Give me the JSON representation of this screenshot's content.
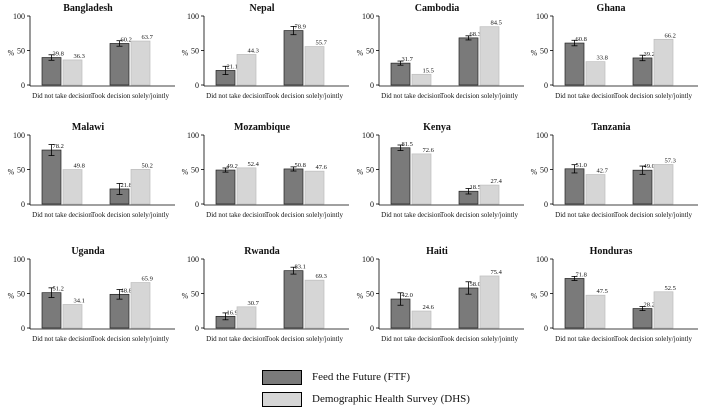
{
  "chart_data": {
    "type": "bar",
    "ylabel": "%",
    "ylim": [
      0,
      100
    ],
    "yticks": [
      0,
      50,
      100
    ],
    "categories": [
      "Did not take decision",
      "Took decision solely/jointly"
    ],
    "series_names": [
      "Feed the Future (FTF)",
      "Demographic Health Survey (DHS)"
    ],
    "colors": {
      "ftf": "#7a7a7a",
      "dhs": "#d6d6d6",
      "edge": "#222222"
    },
    "panels": [
      {
        "country": "Bangladesh",
        "ftf": [
          39.8,
          60.2
        ],
        "dhs": [
          36.3,
          63.7
        ],
        "ftf_ci": [
          [
            35.8,
            43.8
          ],
          [
            56.2,
            64.2
          ]
        ],
        "ftf_labels": [
          "39.8",
          "60.2"
        ],
        "dhs_labels": [
          "36.3",
          "63.7"
        ]
      },
      {
        "country": "Nepal",
        "ftf": [
          21.1,
          78.9
        ],
        "dhs": [
          44.3,
          55.7
        ],
        "ftf_ci": [
          [
            15.1,
            27.1
          ],
          [
            72.9,
            84.9
          ]
        ],
        "ftf_labels": [
          "21.1",
          "78.9"
        ],
        "dhs_labels": [
          "44.3",
          "55.7"
        ]
      },
      {
        "country": "Cambodia",
        "ftf": [
          31.7,
          68.3
        ],
        "dhs": [
          15.5,
          84.5
        ],
        "ftf_ci": [
          [
            28.7,
            34.7
          ],
          [
            65.3,
            71.3
          ]
        ],
        "ftf_labels": [
          "31.7",
          "68.3"
        ],
        "dhs_labels": [
          "15.5",
          "84.5"
        ]
      },
      {
        "country": "Ghana",
        "ftf": [
          60.8,
          39.2
        ],
        "dhs": [
          33.8,
          66.2
        ],
        "ftf_ci": [
          [
            56.8,
            64.8
          ],
          [
            35.2,
            43.2
          ]
        ],
        "ftf_labels": [
          "60.8",
          "39.2"
        ],
        "dhs_labels": [
          "33.8",
          "66.2"
        ]
      },
      {
        "country": "Malawi",
        "ftf": [
          78.2,
          21.8
        ],
        "dhs": [
          49.8,
          50.2
        ],
        "ftf_ci": [
          [
            70.2,
            86.2
          ],
          [
            13.8,
            29.8
          ]
        ],
        "ftf_labels": [
          "78.2",
          "21.8"
        ],
        "dhs_labels": [
          "49.8",
          "50.2"
        ]
      },
      {
        "country": "Mozambique",
        "ftf": [
          49.2,
          50.8
        ],
        "dhs": [
          52.4,
          47.6
        ],
        "ftf_ci": [
          [
            46.2,
            52.2
          ],
          [
            47.8,
            53.8
          ]
        ],
        "ftf_labels": [
          "49.2",
          "50.8"
        ],
        "dhs_labels": [
          "52.4",
          "47.6"
        ]
      },
      {
        "country": "Kenya",
        "ftf": [
          81.5,
          18.5
        ],
        "dhs": [
          72.6,
          27.4
        ],
        "ftf_ci": [
          [
            77.5,
            85.5
          ],
          [
            14.5,
            22.5
          ]
        ],
        "ftf_labels": [
          "81.5",
          "18.5"
        ],
        "dhs_labels": [
          "72.6",
          "27.4"
        ]
      },
      {
        "country": "Tanzania",
        "ftf": [
          51.0,
          49.0
        ],
        "dhs": [
          42.7,
          57.3
        ],
        "ftf_ci": [
          [
            45.0,
            57.0
          ],
          [
            43.0,
            55.0
          ]
        ],
        "ftf_labels": [
          "51.0",
          "49.0"
        ],
        "dhs_labels": [
          "42.7",
          "57.3"
        ]
      },
      {
        "country": "Uganda",
        "ftf": [
          51.2,
          48.8
        ],
        "dhs": [
          34.1,
          65.9
        ],
        "ftf_ci": [
          [
            44.2,
            58.2
          ],
          [
            41.8,
            55.8
          ]
        ],
        "ftf_labels": [
          "51.2",
          "48.8"
        ],
        "dhs_labels": [
          "34.1",
          "65.9"
        ]
      },
      {
        "country": "Rwanda",
        "ftf": [
          16.9,
          83.1
        ],
        "dhs": [
          30.7,
          69.3
        ],
        "ftf_ci": [
          [
            11.9,
            21.9
          ],
          [
            78.1,
            88.1
          ]
        ],
        "ftf_labels": [
          "16.9",
          "83.1"
        ],
        "dhs_labels": [
          "30.7",
          "69.3"
        ]
      },
      {
        "country": "Haiti",
        "ftf": [
          42.0,
          58.0
        ],
        "dhs": [
          24.6,
          75.4
        ],
        "ftf_ci": [
          [
            33.0,
            51.0
          ],
          [
            49.0,
            67.0
          ]
        ],
        "ftf_labels": [
          "42.0",
          "58.0"
        ],
        "dhs_labels": [
          "24.6",
          "75.4"
        ]
      },
      {
        "country": "Honduras",
        "ftf": [
          71.8,
          28.2
        ],
        "dhs": [
          47.5,
          52.5
        ],
        "ftf_ci": [
          [
            68.8,
            74.8
          ],
          [
            25.2,
            31.2
          ]
        ],
        "ftf_labels": [
          "71.8",
          "28.2"
        ],
        "dhs_labels": [
          "47.5",
          "52.5"
        ]
      }
    ]
  },
  "legend": {
    "ftf_label": "Feed the Future (FTF)",
    "dhs_label": "Demographic Health Survey (DHS)"
  }
}
